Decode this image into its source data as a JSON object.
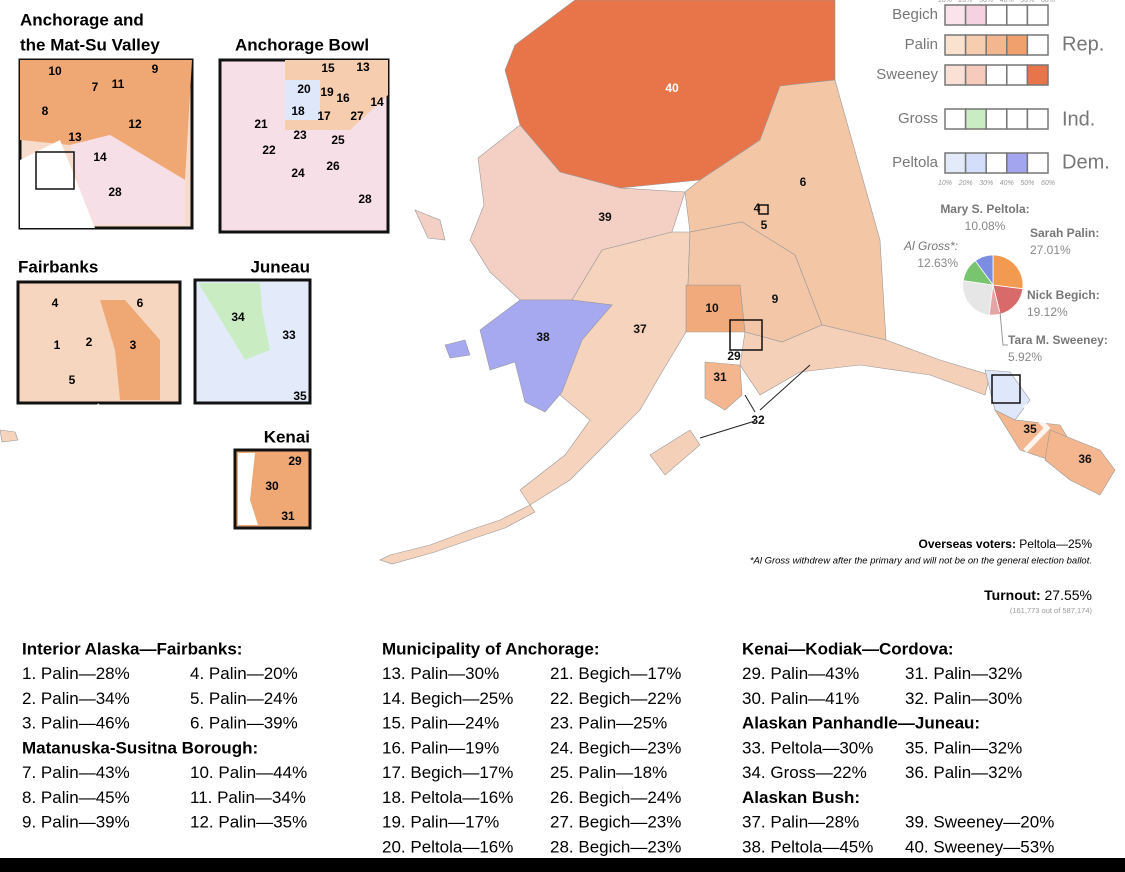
{
  "insets": [
    {
      "title": [
        "Anchorage and",
        "the Mat-Su Valley"
      ],
      "labels": [
        "10",
        "9",
        "7",
        "11",
        "8",
        "12",
        "13",
        "14",
        "28"
      ]
    },
    {
      "title": [
        "Anchorage Bowl"
      ],
      "labels": [
        "15",
        "13",
        "20",
        "19",
        "16",
        "14",
        "18",
        "17",
        "27",
        "21",
        "23",
        "25",
        "22",
        "26",
        "24",
        "28"
      ]
    },
    {
      "title": [
        "Fairbanks"
      ],
      "labels": [
        "4",
        "6",
        "1",
        "2",
        "3",
        "5"
      ]
    },
    {
      "title": [
        "Juneau"
      ],
      "labels": [
        "34",
        "33",
        "35"
      ]
    },
    {
      "title": [
        "Kenai"
      ],
      "labels": [
        "29",
        "30",
        "31"
      ]
    }
  ],
  "map": {
    "labels": [
      "40",
      "39",
      "6",
      "4",
      "5",
      "38",
      "37",
      "10",
      "9",
      "29",
      "31",
      "32",
      "35",
      "36"
    ]
  },
  "legend": {
    "scale": [
      "10%",
      "20%",
      "30%",
      "40%",
      "50%",
      "60%"
    ],
    "rows": [
      {
        "name": "Begich",
        "colors": [
          "#fbe3ec",
          "#f6d2e0",
          "#fff",
          "#fff",
          "#fff"
        ]
      },
      {
        "name": "Palin",
        "colors": [
          "#fbe2cf",
          "#f7cdb0",
          "#f3b68e",
          "#efa06d",
          "#fff"
        ]
      },
      {
        "name": "Sweeney",
        "colors": [
          "#fbe0d6",
          "#f6cbbb",
          "#fff",
          "#fff",
          "#e8744a"
        ]
      },
      {
        "name": "Gross",
        "colors": [
          "#fff",
          "#c9ecc3",
          "#fff",
          "#fff",
          "#fff"
        ]
      },
      {
        "name": "Peltola",
        "colors": [
          "#e3ebfb",
          "#d2defa",
          "#fff",
          "#a3a6ef",
          "#fff"
        ]
      }
    ],
    "parties": [
      "Rep.",
      "Ind.",
      "Dem."
    ]
  },
  "chart_data": {
    "type": "pie",
    "categories": [
      "Sarah Palin:",
      "Nick Begich:",
      "Tara M. Sweeney:",
      "Mary S. Peltola:",
      "Al Gross*:"
    ],
    "values": [
      27.01,
      19.12,
      5.92,
      10.08,
      12.63
    ],
    "value_labels": [
      "27.01%",
      "19.12%",
      "5.92%",
      "10.08%",
      "12.63%"
    ],
    "colors": [
      "#f29a4f",
      "#d96a6a",
      "#e6a5a5",
      "#7b8de0",
      "#79c46e"
    ]
  },
  "notes": {
    "overseas_label": "Overseas voters:",
    "overseas_value": " Peltola—25%",
    "footnote": "*Al Gross withdrew after the primary and will not be on the general election ballot.",
    "turnout_label": "Turnout:",
    "turnout_value": " 27.55%",
    "turnout_detail": "(161,773 out of 587,174)"
  },
  "results": [
    {
      "title": "Interior Alaska—Fairbanks:",
      "items": [
        [
          "1. Palin—28%",
          "4. Palin—20%"
        ],
        [
          "2. Palin—34%",
          "5. Palin—24%"
        ],
        [
          "3. Palin—46%",
          "6. Palin—39%"
        ]
      ]
    },
    {
      "title": "Matanuska-Susitna Borough:",
      "items": [
        [
          "7. Palin—43%",
          "10. Palin—44%"
        ],
        [
          "8. Palin—45%",
          "11. Palin—34%"
        ],
        [
          "9. Palin—39%",
          "12. Palin—35%"
        ]
      ]
    },
    {
      "title": "Municipality of Anchorage:",
      "items": [
        [
          "13. Palin—30%",
          "21. Begich—17%"
        ],
        [
          "14. Begich—25%",
          "22. Begich—22%"
        ],
        [
          "15. Palin—24%",
          "23. Palin—25%"
        ],
        [
          "16. Palin—19%",
          "24. Begich—23%"
        ],
        [
          "17. Begich—17%",
          "25. Palin—18%"
        ],
        [
          "18. Peltola—16%",
          "26. Begich—24%"
        ],
        [
          "19. Palin—17%",
          "27. Begich—23%"
        ],
        [
          "20. Peltola—16%",
          "28. Begich—23%"
        ]
      ]
    },
    {
      "title": "Kenai—Kodiak—Cordova:",
      "items": [
        [
          "29. Palin—43%",
          "31. Palin—32%"
        ],
        [
          "30. Palin—41%",
          "32. Palin—30%"
        ]
      ]
    },
    {
      "title": "Alaskan Panhandle—Juneau:",
      "items": [
        [
          "33. Peltola—30%",
          "35. Palin—32%"
        ],
        [
          "34. Gross—22%",
          "36. Palin—32%"
        ]
      ]
    },
    {
      "title": "Alaskan Bush:",
      "items": [
        [
          "37. Palin—28%",
          "39. Sweeney—20%"
        ],
        [
          "38. Peltola—45%",
          "40. Sweeney—53%"
        ]
      ]
    }
  ]
}
